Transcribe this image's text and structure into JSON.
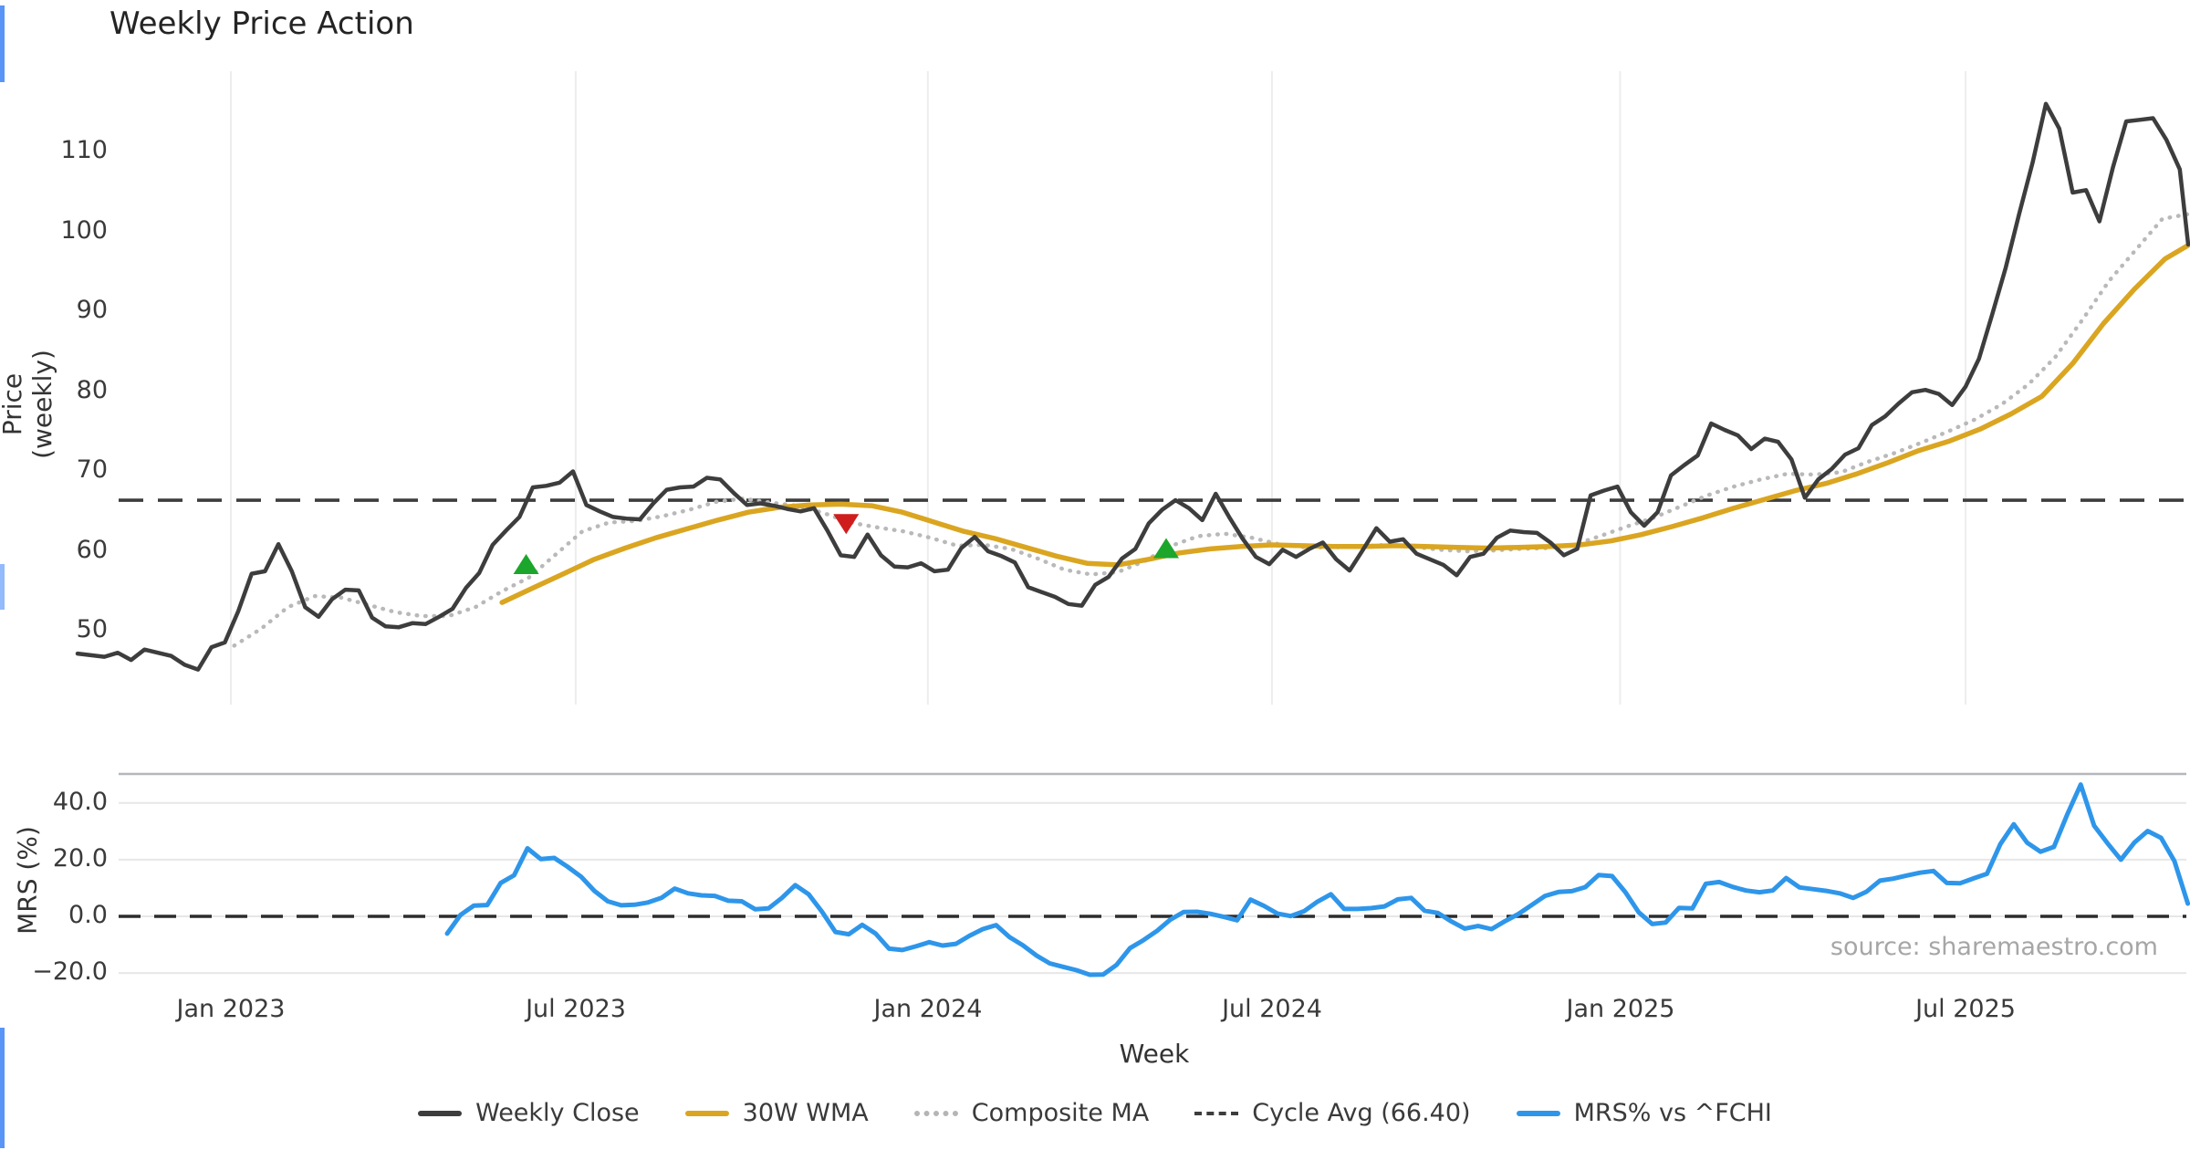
{
  "title": "Weekly Price Action",
  "source_note": "source: sharemaestro.com",
  "colors": {
    "weekly_close": "#3d3d3d",
    "wma30": "#DAA520",
    "composite_ma": "#b9b9b9",
    "cycle_avg": "#3d3d3d",
    "mrs": "#2e96ea",
    "buy_marker": "#1ca62c",
    "sell_marker": "#cf1d1d",
    "grid": "#ededed",
    "panel_border": "#b3b7bc"
  },
  "legend": {
    "items": [
      {
        "label": "Weekly Close",
        "swatch": "solid-dark"
      },
      {
        "label": "30W WMA",
        "swatch": "solid-gold"
      },
      {
        "label": "Composite MA",
        "swatch": "dotted"
      },
      {
        "label": "Cycle Avg (66.40)",
        "swatch": "dashed"
      },
      {
        "label": "MRS% vs ^FCHI",
        "swatch": "solid-blue"
      }
    ]
  },
  "chart_data": [
    {
      "type": "line",
      "panel": "price",
      "title": "Weekly Price Action",
      "xlabel": "",
      "ylabel": "Price (weekly)",
      "ylim": [
        40.8,
        120.1
      ],
      "yticks": [
        "110",
        "100",
        "90",
        "80",
        "70",
        "60",
        "50"
      ],
      "ytick_values": [
        110,
        100,
        90,
        80,
        70,
        60,
        50
      ],
      "grid": "vertical-only",
      "x_unit": "week index (weekly data, ~Oct 2022 to ~Oct 2025)",
      "xlim": [
        0,
        158
      ],
      "xticks": [
        {
          "label": "Jan 2023",
          "week": 11.45
        },
        {
          "label": "Jul 2023",
          "week": 37.2
        },
        {
          "label": "Jan 2024",
          "week": 63.5
        },
        {
          "label": "Jul 2024",
          "week": 89.2
        },
        {
          "label": "Jan 2025",
          "week": 115.2
        },
        {
          "label": "Jul 2025",
          "week": 141.0
        }
      ],
      "cycle_avg_value": 66.4,
      "series": [
        {
          "name": "Weekly Close",
          "style": "solid",
          "width": 4.5,
          "color": "#3d3d3d",
          "w_start": 0,
          "w_step": 1,
          "values": [
            47.2,
            47.0,
            46.8,
            47.3,
            46.4,
            47.7,
            47.3,
            46.9,
            45.8,
            45.2,
            48.0,
            48.6,
            52.5,
            57.2,
            57.5,
            60.9,
            57.5,
            53.0,
            51.8,
            54.0,
            55.2,
            55.1,
            51.7,
            50.6,
            50.5,
            51.0,
            50.9,
            51.8,
            52.8,
            55.4,
            57.3,
            60.8,
            62.6,
            64.3,
            68.0,
            68.2,
            68.6,
            70.0,
            65.8,
            65.0,
            64.3,
            64.1,
            64.0,
            66.0,
            67.7,
            68.0,
            68.1,
            69.2,
            69.0,
            67.3,
            65.8,
            66.0,
            65.7,
            65.3,
            65.0,
            65.4,
            62.6,
            59.5,
            59.3,
            62.1,
            59.5,
            58.1,
            58.0,
            58.5,
            57.5,
            57.7,
            60.4,
            61.8,
            60.0,
            59.4,
            58.6,
            55.5,
            54.9,
            54.3,
            53.4,
            53.2,
            55.8,
            56.8,
            59.1,
            60.3,
            63.5,
            65.2,
            66.4,
            65.4,
            63.9,
            67.2,
            64.3,
            61.6,
            59.3,
            58.4,
            60.2,
            59.3,
            60.3,
            61.1,
            59.0,
            57.6,
            60.2,
            62.9,
            61.2,
            61.5,
            59.7,
            59.0,
            58.3,
            57.0,
            59.3,
            59.7,
            61.7,
            62.6,
            62.4,
            62.3,
            61.1,
            59.5,
            60.3,
            67.0,
            67.6,
            68.1,
            64.9,
            63.2,
            64.9,
            69.5,
            70.8,
            72.0,
            76.0,
            75.2,
            74.5,
            72.8,
            74.1,
            73.7,
            71.5,
            66.7,
            69.0,
            70.3,
            72.1,
            72.9,
            75.8,
            76.9,
            78.5,
            79.9,
            80.2,
            79.7,
            78.3,
            80.6,
            84.1,
            89.7,
            95.5,
            102.2,
            108.6,
            116.0,
            112.9,
            104.9,
            105.2,
            101.3,
            108.0,
            113.8,
            114.0,
            114.2,
            111.5,
            107.8,
            98.4
          ]
        },
        {
          "name": "30W WMA",
          "style": "solid",
          "width": 5.5,
          "color": "#DAA520",
          "w_start": 31.7,
          "w_step": 2.3,
          "values": [
            53.6,
            55.4,
            57.2,
            59.0,
            60.4,
            61.7,
            62.8,
            63.9,
            64.9,
            65.5,
            65.8,
            65.9,
            65.7,
            64.9,
            63.7,
            62.5,
            61.6,
            60.5,
            59.4,
            58.5,
            58.3,
            59.0,
            59.8,
            60.3,
            60.6,
            60.8,
            60.7,
            60.6,
            60.6,
            60.7,
            60.6,
            60.5,
            60.4,
            60.5,
            60.6,
            60.8,
            61.3,
            62.1,
            63.1,
            64.2,
            65.4,
            66.5,
            67.6,
            68.5,
            69.7,
            71.1,
            72.6,
            73.8,
            75.3,
            77.2,
            79.4,
            83.5,
            88.5,
            92.8,
            96.6,
            98.3
          ]
        },
        {
          "name": "Composite MA",
          "style": "dotted",
          "width": 4.5,
          "color": "#b9b9b9",
          "w_start": 11.7,
          "w_step": 2,
          "values": [
            48.2,
            50.3,
            53.0,
            54.4,
            54.2,
            53.3,
            52.4,
            51.9,
            51.9,
            53.0,
            55.0,
            56.7,
            59.6,
            62.5,
            63.6,
            63.8,
            64.4,
            65.2,
            66.2,
            66.6,
            66.1,
            65.7,
            64.8,
            63.6,
            63.0,
            62.5,
            61.7,
            60.7,
            60.8,
            60.3,
            59.1,
            57.7,
            57.1,
            57.4,
            58.8,
            60.7,
            61.9,
            62.2,
            61.7,
            60.9,
            60.5,
            60.5,
            60.6,
            60.8,
            60.6,
            60.2,
            60.0,
            60.1,
            60.3,
            60.4,
            60.8,
            61.9,
            63.1,
            64.2,
            65.6,
            67.0,
            68.1,
            69.0,
            69.7,
            69.6,
            69.9,
            71.2,
            72.3,
            73.6,
            75.0,
            76.5,
            78.4,
            80.9,
            84.3,
            88.9,
            93.8,
            97.7,
            101.6,
            102.2
          ]
        },
        {
          "name": "Cycle Avg (66.40)",
          "style": "dashed",
          "width": 3.6,
          "color": "#3d3d3d",
          "constant_value": 66.4
        }
      ],
      "markers": [
        {
          "shape": "triangle-up",
          "meaning": "buy-signal",
          "color": "#1ca62c",
          "week": 33.5,
          "price": 58.4
        },
        {
          "shape": "triangle-down",
          "meaning": "sell-signal",
          "color": "#cf1d1d",
          "week": 57.4,
          "price": 63.4
        },
        {
          "shape": "triangle-up",
          "meaning": "buy-signal",
          "color": "#1ca62c",
          "week": 81.3,
          "price": 60.4
        }
      ]
    },
    {
      "type": "line",
      "panel": "mrs",
      "xlabel": "Week",
      "ylabel": "MRS (%)",
      "ylim": [
        -23.8,
        50.3
      ],
      "yticks": [
        "40.0",
        "20.0",
        "0.0",
        "−20.0"
      ],
      "ytick_values": [
        40,
        20,
        0,
        -20
      ],
      "grid": "horizontal-only",
      "zero_line": {
        "style": "dashed",
        "value": 0.0
      },
      "series": [
        {
          "name": "MRS% vs ^FCHI",
          "style": "solid",
          "width": 5,
          "color": "#2e96ea",
          "w_start": 27.6,
          "w_step": 1,
          "values": [
            -6.1,
            0.5,
            3.8,
            4.0,
            11.8,
            14.5,
            24.0,
            20.2,
            20.6,
            17.5,
            14.0,
            9.0,
            5.3,
            3.9,
            4.1,
            4.9,
            6.5,
            9.8,
            8.1,
            7.4,
            7.2,
            5.5,
            5.3,
            2.5,
            2.8,
            6.5,
            11.0,
            7.8,
            1.6,
            -5.5,
            -6.3,
            -3.0,
            -6.1,
            -11.4,
            -11.9,
            -10.6,
            -9.1,
            -10.3,
            -9.7,
            -6.9,
            -4.5,
            -3.1,
            -7.3,
            -10.2,
            -13.8,
            -16.6,
            -17.8,
            -19.0,
            -20.6,
            -20.5,
            -17.1,
            -11.2,
            -8.4,
            -5.2,
            -1.2,
            1.5,
            1.6,
            0.9,
            -0.2,
            -1.4,
            5.9,
            3.7,
            1.0,
            0.1,
            1.8,
            5.2,
            7.8,
            2.6,
            2.6,
            2.9,
            3.5,
            6.0,
            6.5,
            2.0,
            1.2,
            -1.8,
            -4.3,
            -3.4,
            -4.5,
            -1.7,
            0.8,
            4.0,
            7.2,
            8.6,
            8.9,
            10.3,
            14.6,
            14.2,
            8.5,
            1.4,
            -2.7,
            -2.2,
            3.0,
            2.8,
            11.5,
            12.1,
            10.4,
            9.1,
            8.5,
            9.1,
            13.5,
            10.2,
            9.6,
            9.0,
            8.1,
            6.5,
            8.7,
            12.6,
            13.3,
            14.4,
            15.4,
            16.0,
            11.8,
            11.7,
            13.4,
            15.0,
            25.5,
            32.5,
            26.0,
            22.8,
            24.5,
            36.0,
            46.5,
            32.0,
            25.8,
            20.0,
            26.0,
            30.1,
            27.7,
            19.5,
            4.5
          ]
        }
      ]
    }
  ]
}
